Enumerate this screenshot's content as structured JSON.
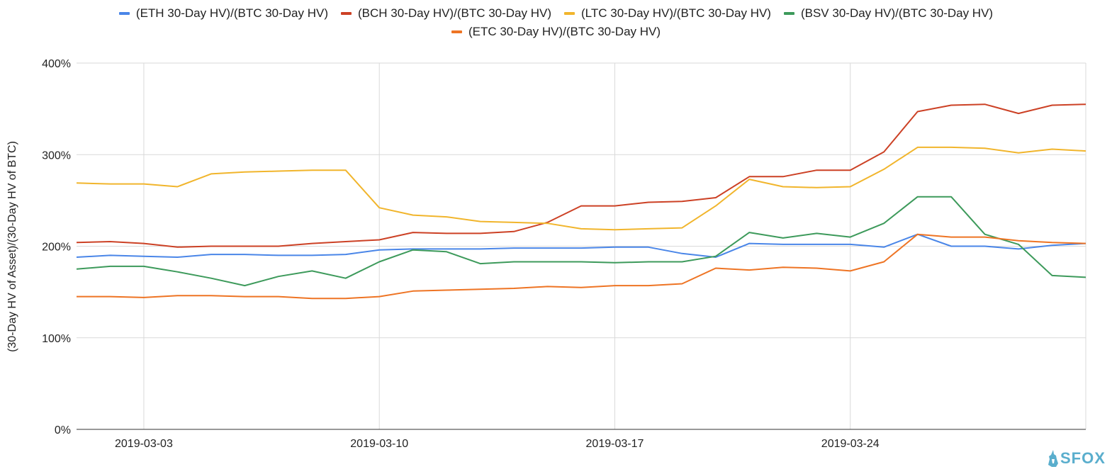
{
  "chart_data": {
    "type": "line",
    "title": "",
    "xlabel": "",
    "ylabel": "(30-Day HV of Asset)/(30-Day HV of BTC)",
    "y_tick_labels": [
      "0%",
      "100%",
      "200%",
      "300%",
      "400%"
    ],
    "y_ticks": [
      0,
      100,
      200,
      300,
      400
    ],
    "ylim": [
      0,
      400
    ],
    "x_tick_labels": [
      "2019-03-03",
      "2019-03-10",
      "2019-03-17",
      "2019-03-24"
    ],
    "x_start": "2019-03-01",
    "x_end": "2019-03-31",
    "grid": true,
    "legend_position": "top",
    "x": [
      "2019-03-01",
      "2019-03-02",
      "2019-03-03",
      "2019-03-04",
      "2019-03-05",
      "2019-03-06",
      "2019-03-07",
      "2019-03-08",
      "2019-03-09",
      "2019-03-10",
      "2019-03-11",
      "2019-03-12",
      "2019-03-13",
      "2019-03-14",
      "2019-03-15",
      "2019-03-16",
      "2019-03-17",
      "2019-03-18",
      "2019-03-19",
      "2019-03-20",
      "2019-03-21",
      "2019-03-22",
      "2019-03-23",
      "2019-03-24",
      "2019-03-25",
      "2019-03-26",
      "2019-03-27",
      "2019-03-28",
      "2019-03-29",
      "2019-03-30",
      "2019-03-31"
    ],
    "series": [
      {
        "name": "(ETH 30-Day HV)/(BTC 30-Day HV)",
        "color": "#4a86e8",
        "values": [
          188,
          190,
          189,
          188,
          191,
          191,
          190,
          190,
          191,
          196,
          197,
          197,
          197,
          198,
          198,
          198,
          199,
          199,
          192,
          188,
          203,
          202,
          202,
          202,
          199,
          213,
          200,
          200,
          197,
          201,
          203
        ]
      },
      {
        "name": "(BCH 30-Day HV)/(BTC 30-Day HV)",
        "color": "#cc4125",
        "values": [
          204,
          205,
          203,
          199,
          200,
          200,
          200,
          203,
          205,
          207,
          215,
          214,
          214,
          216,
          226,
          244,
          244,
          248,
          249,
          253,
          276,
          276,
          283,
          283,
          303,
          347,
          354,
          355,
          345,
          354,
          355
        ]
      },
      {
        "name": "(LTC 30-Day HV)/(BTC 30-Day HV)",
        "color": "#f1b52c",
        "values": [
          269,
          268,
          268,
          265,
          279,
          281,
          282,
          283,
          283,
          242,
          234,
          232,
          227,
          226,
          225,
          219,
          218,
          219,
          220,
          244,
          273,
          265,
          264,
          265,
          284,
          308,
          308,
          307,
          302,
          306,
          304
        ]
      },
      {
        "name": "(BSV 30-Day HV)/(BTC 30-Day HV)",
        "color": "#3d9a5b",
        "values": [
          175,
          178,
          178,
          172,
          165,
          157,
          167,
          173,
          165,
          183,
          196,
          194,
          181,
          183,
          183,
          183,
          182,
          183,
          183,
          189,
          215,
          209,
          214,
          210,
          225,
          254,
          254,
          213,
          202,
          168,
          166
        ]
      },
      {
        "name": "(ETC 30-Day HV)/(BTC 30-Day HV)",
        "color": "#ee7424",
        "values": [
          145,
          145,
          144,
          146,
          146,
          145,
          145,
          143,
          143,
          145,
          151,
          152,
          153,
          154,
          156,
          155,
          157,
          157,
          159,
          176,
          174,
          177,
          176,
          173,
          183,
          213,
          210,
          210,
          206,
          204,
          203
        ]
      }
    ]
  },
  "logo": {
    "text": "SFOX"
  }
}
